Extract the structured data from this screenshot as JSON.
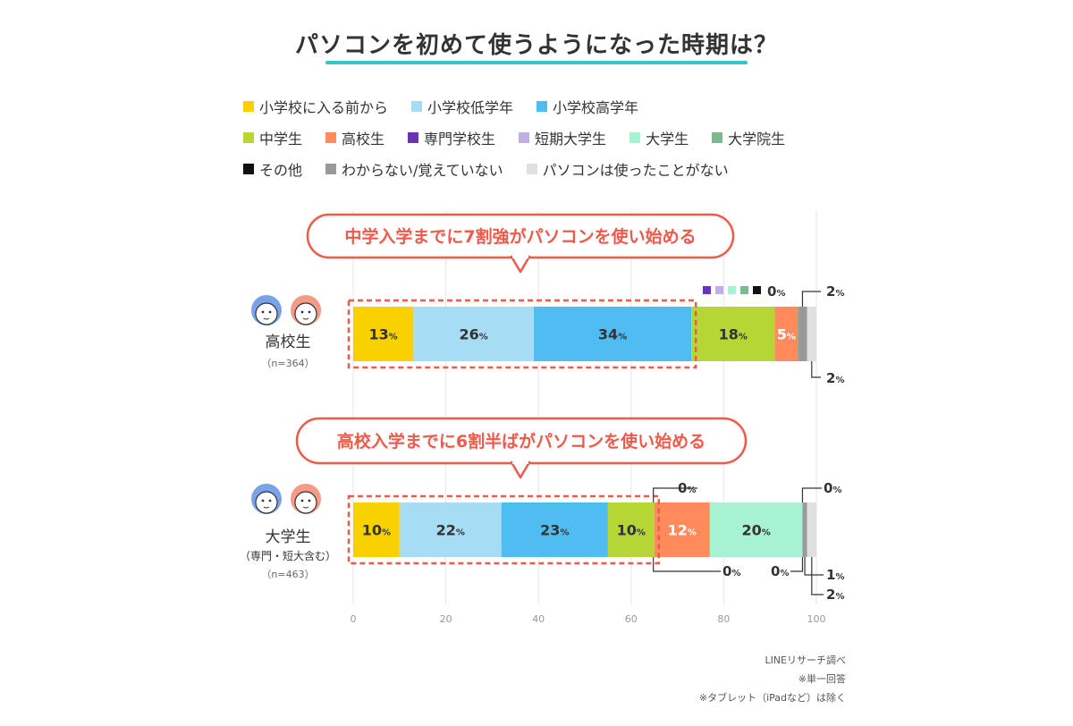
{
  "title": "パソコンを初めて使うようになった時期は？",
  "legend": {
    "rows": [
      [
        {
          "label": "小学校に入る前から",
          "color": "#f9d000"
        },
        {
          "label": "小学校低学年",
          "color": "#a6dcf4"
        },
        {
          "label": "小学校高学年",
          "color": "#4fbcf2"
        }
      ],
      [
        {
          "label": "中学生",
          "color": "#b6d635"
        },
        {
          "label": "高校生",
          "color": "#ff8a5c"
        },
        {
          "label": "専門学校生",
          "color": "#6a34b5"
        },
        {
          "label": "短期大学生",
          "color": "#c2aee6"
        },
        {
          "label": "大学生",
          "color": "#a8f2d4"
        },
        {
          "label": "大学院生",
          "color": "#7cb890"
        }
      ],
      [
        {
          "label": "その他",
          "color": "#111111"
        },
        {
          "label": "わからない/覚えていない",
          "color": "#999999"
        },
        {
          "label": "パソコンは使ったことがない",
          "color": "#e0e0e0"
        }
      ]
    ]
  },
  "chart_data": {
    "type": "bar",
    "orientation": "horizontal",
    "stacked": true,
    "title": "パソコンを初めて使うようになった時期は？",
    "xlim": [
      0,
      100
    ],
    "x_ticks": [
      "0",
      "20",
      "40",
      "60",
      "80",
      "100"
    ],
    "grid": true,
    "legend_position": "top",
    "categories": [
      {
        "name": "高校生",
        "sub": "",
        "n": "（n=364）"
      },
      {
        "name": "大学生",
        "sub": "（専門・短大含む）",
        "n": "（n=463）"
      }
    ],
    "series": [
      {
        "name": "小学校に入る前から",
        "color": "#f9d000",
        "values": [
          13,
          10
        ],
        "labels": [
          "13",
          "10"
        ]
      },
      {
        "name": "小学校低学年",
        "color": "#a6dcf4",
        "values": [
          26,
          22
        ],
        "labels": [
          "26",
          "22"
        ]
      },
      {
        "name": "小学校高学年",
        "color": "#4fbcf2",
        "values": [
          34,
          23
        ],
        "labels": [
          "34",
          "23"
        ]
      },
      {
        "name": "中学生",
        "color": "#b6d635",
        "values": [
          18,
          10
        ],
        "labels": [
          "18",
          "10"
        ]
      },
      {
        "name": "高校生",
        "color": "#ff8a5c",
        "values": [
          5,
          12
        ],
        "labels": [
          "5",
          "12"
        ]
      },
      {
        "name": "専門学校生",
        "color": "#6a34b5",
        "values": [
          0,
          0
        ],
        "labels": [
          "",
          ""
        ]
      },
      {
        "name": "短期大学生",
        "color": "#c2aee6",
        "values": [
          0,
          0
        ],
        "labels": [
          "",
          ""
        ]
      },
      {
        "name": "大学生",
        "color": "#a8f2d4",
        "values": [
          0,
          20
        ],
        "labels": [
          "",
          "20"
        ]
      },
      {
        "name": "大学院生",
        "color": "#7cb890",
        "values": [
          0,
          0
        ],
        "labels": [
          "",
          ""
        ]
      },
      {
        "name": "その他",
        "color": "#111111",
        "values": [
          0,
          0
        ],
        "labels": [
          "",
          ""
        ]
      },
      {
        "name": "わからない/覚えていない",
        "color": "#999999",
        "values": [
          2,
          1
        ],
        "labels": [
          "",
          ""
        ]
      },
      {
        "name": "パソコンは使ったことがない",
        "color": "#e0e0e0",
        "values": [
          2,
          2
        ],
        "labels": [
          "",
          ""
        ]
      }
    ],
    "pct_suffix": "%",
    "callouts": [
      "中学入学までに7割強がパソコンを使い始める",
      "高校入学までに6割半ばがパソコンを使い始める"
    ],
    "annotations": {
      "row1": [
        "0",
        "2",
        "2"
      ],
      "row2": [
        "0",
        "0",
        "0",
        "0",
        "1",
        "2"
      ]
    }
  },
  "notes": [
    "LINEリサーチ調べ",
    "※単一回答",
    "※タブレット（iPadなど）は除く"
  ]
}
